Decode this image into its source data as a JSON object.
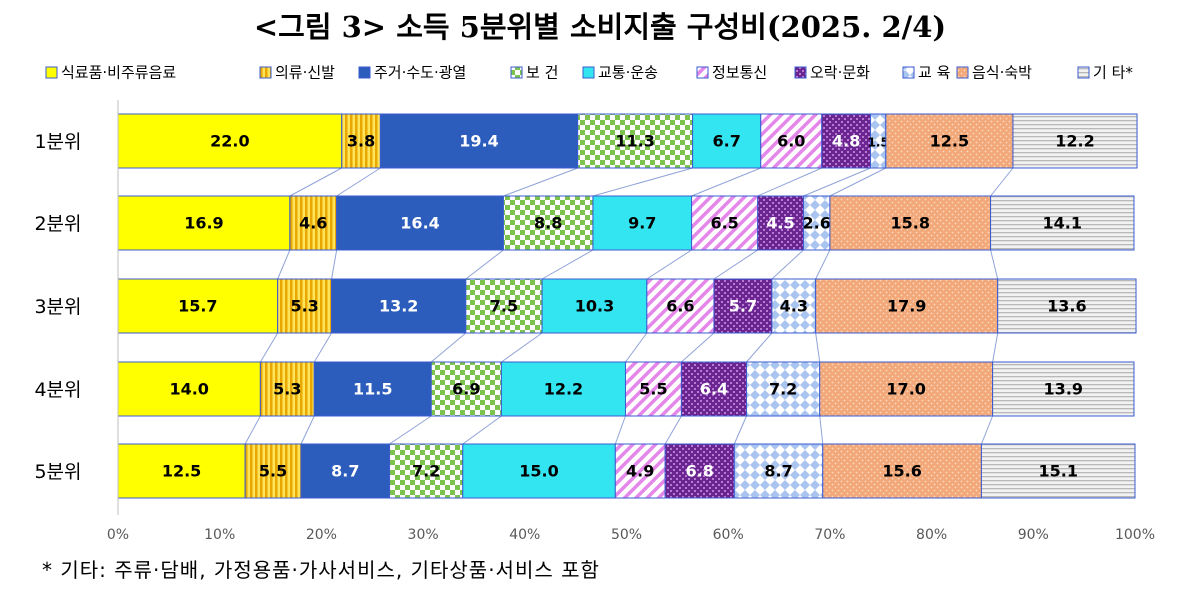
{
  "title": "<그림 3> 소득 5분위별 소비지출 구성비(2025. 2/4)",
  "footnote": "* 기타: 주류·담배, 가정용품·가사서비스, 기타상품·서비스 포함",
  "chart_data": {
    "type": "bar",
    "orientation": "horizontal",
    "stacked": true,
    "percent": true,
    "categories": [
      "1분위",
      "2분위",
      "3분위",
      "4분위",
      "5분위"
    ],
    "series": [
      {
        "name": "식료품·비주류음료",
        "color": "#ffff00",
        "values": [
          22.0,
          16.9,
          15.7,
          14.0,
          12.5
        ]
      },
      {
        "name": "의류·신발",
        "color": "#f5c400",
        "values": [
          3.8,
          4.6,
          5.3,
          5.3,
          5.5
        ]
      },
      {
        "name": "주거·수도·광열",
        "color": "#2e5ebe",
        "values": [
          19.4,
          16.4,
          13.2,
          11.5,
          8.7
        ]
      },
      {
        "name": "보 건",
        "color": "#9bd16a",
        "values": [
          11.3,
          8.8,
          7.5,
          6.9,
          7.2
        ]
      },
      {
        "name": "교통·운송",
        "color": "#33e5f0",
        "values": [
          6.7,
          9.7,
          10.3,
          12.2,
          15.0
        ]
      },
      {
        "name": "정보통신",
        "color": "#e28be8",
        "values": [
          6.0,
          6.5,
          6.6,
          5.5,
          4.9
        ]
      },
      {
        "name": "오락·문화",
        "color": "#7a2e9a",
        "values": [
          4.8,
          4.5,
          5.7,
          6.4,
          6.8
        ]
      },
      {
        "name": "교 육",
        "color": "#a9c4ee",
        "values": [
          1.5,
          2.6,
          4.3,
          7.2,
          8.7
        ]
      },
      {
        "name": "음식·숙박",
        "color": "#f2a878",
        "values": [
          12.5,
          15.8,
          17.9,
          17.0,
          15.6
        ]
      },
      {
        "name": "기 타*",
        "color": "#bcbcbc",
        "values": [
          12.2,
          14.1,
          13.6,
          13.9,
          15.1
        ]
      }
    ],
    "xlim": [
      0,
      100
    ],
    "x_ticks": [
      "0%",
      "10%",
      "20%",
      "30%",
      "40%",
      "50%",
      "60%",
      "70%",
      "80%",
      "90%",
      "100%"
    ],
    "legend_position": "top",
    "connector_lines": true
  }
}
